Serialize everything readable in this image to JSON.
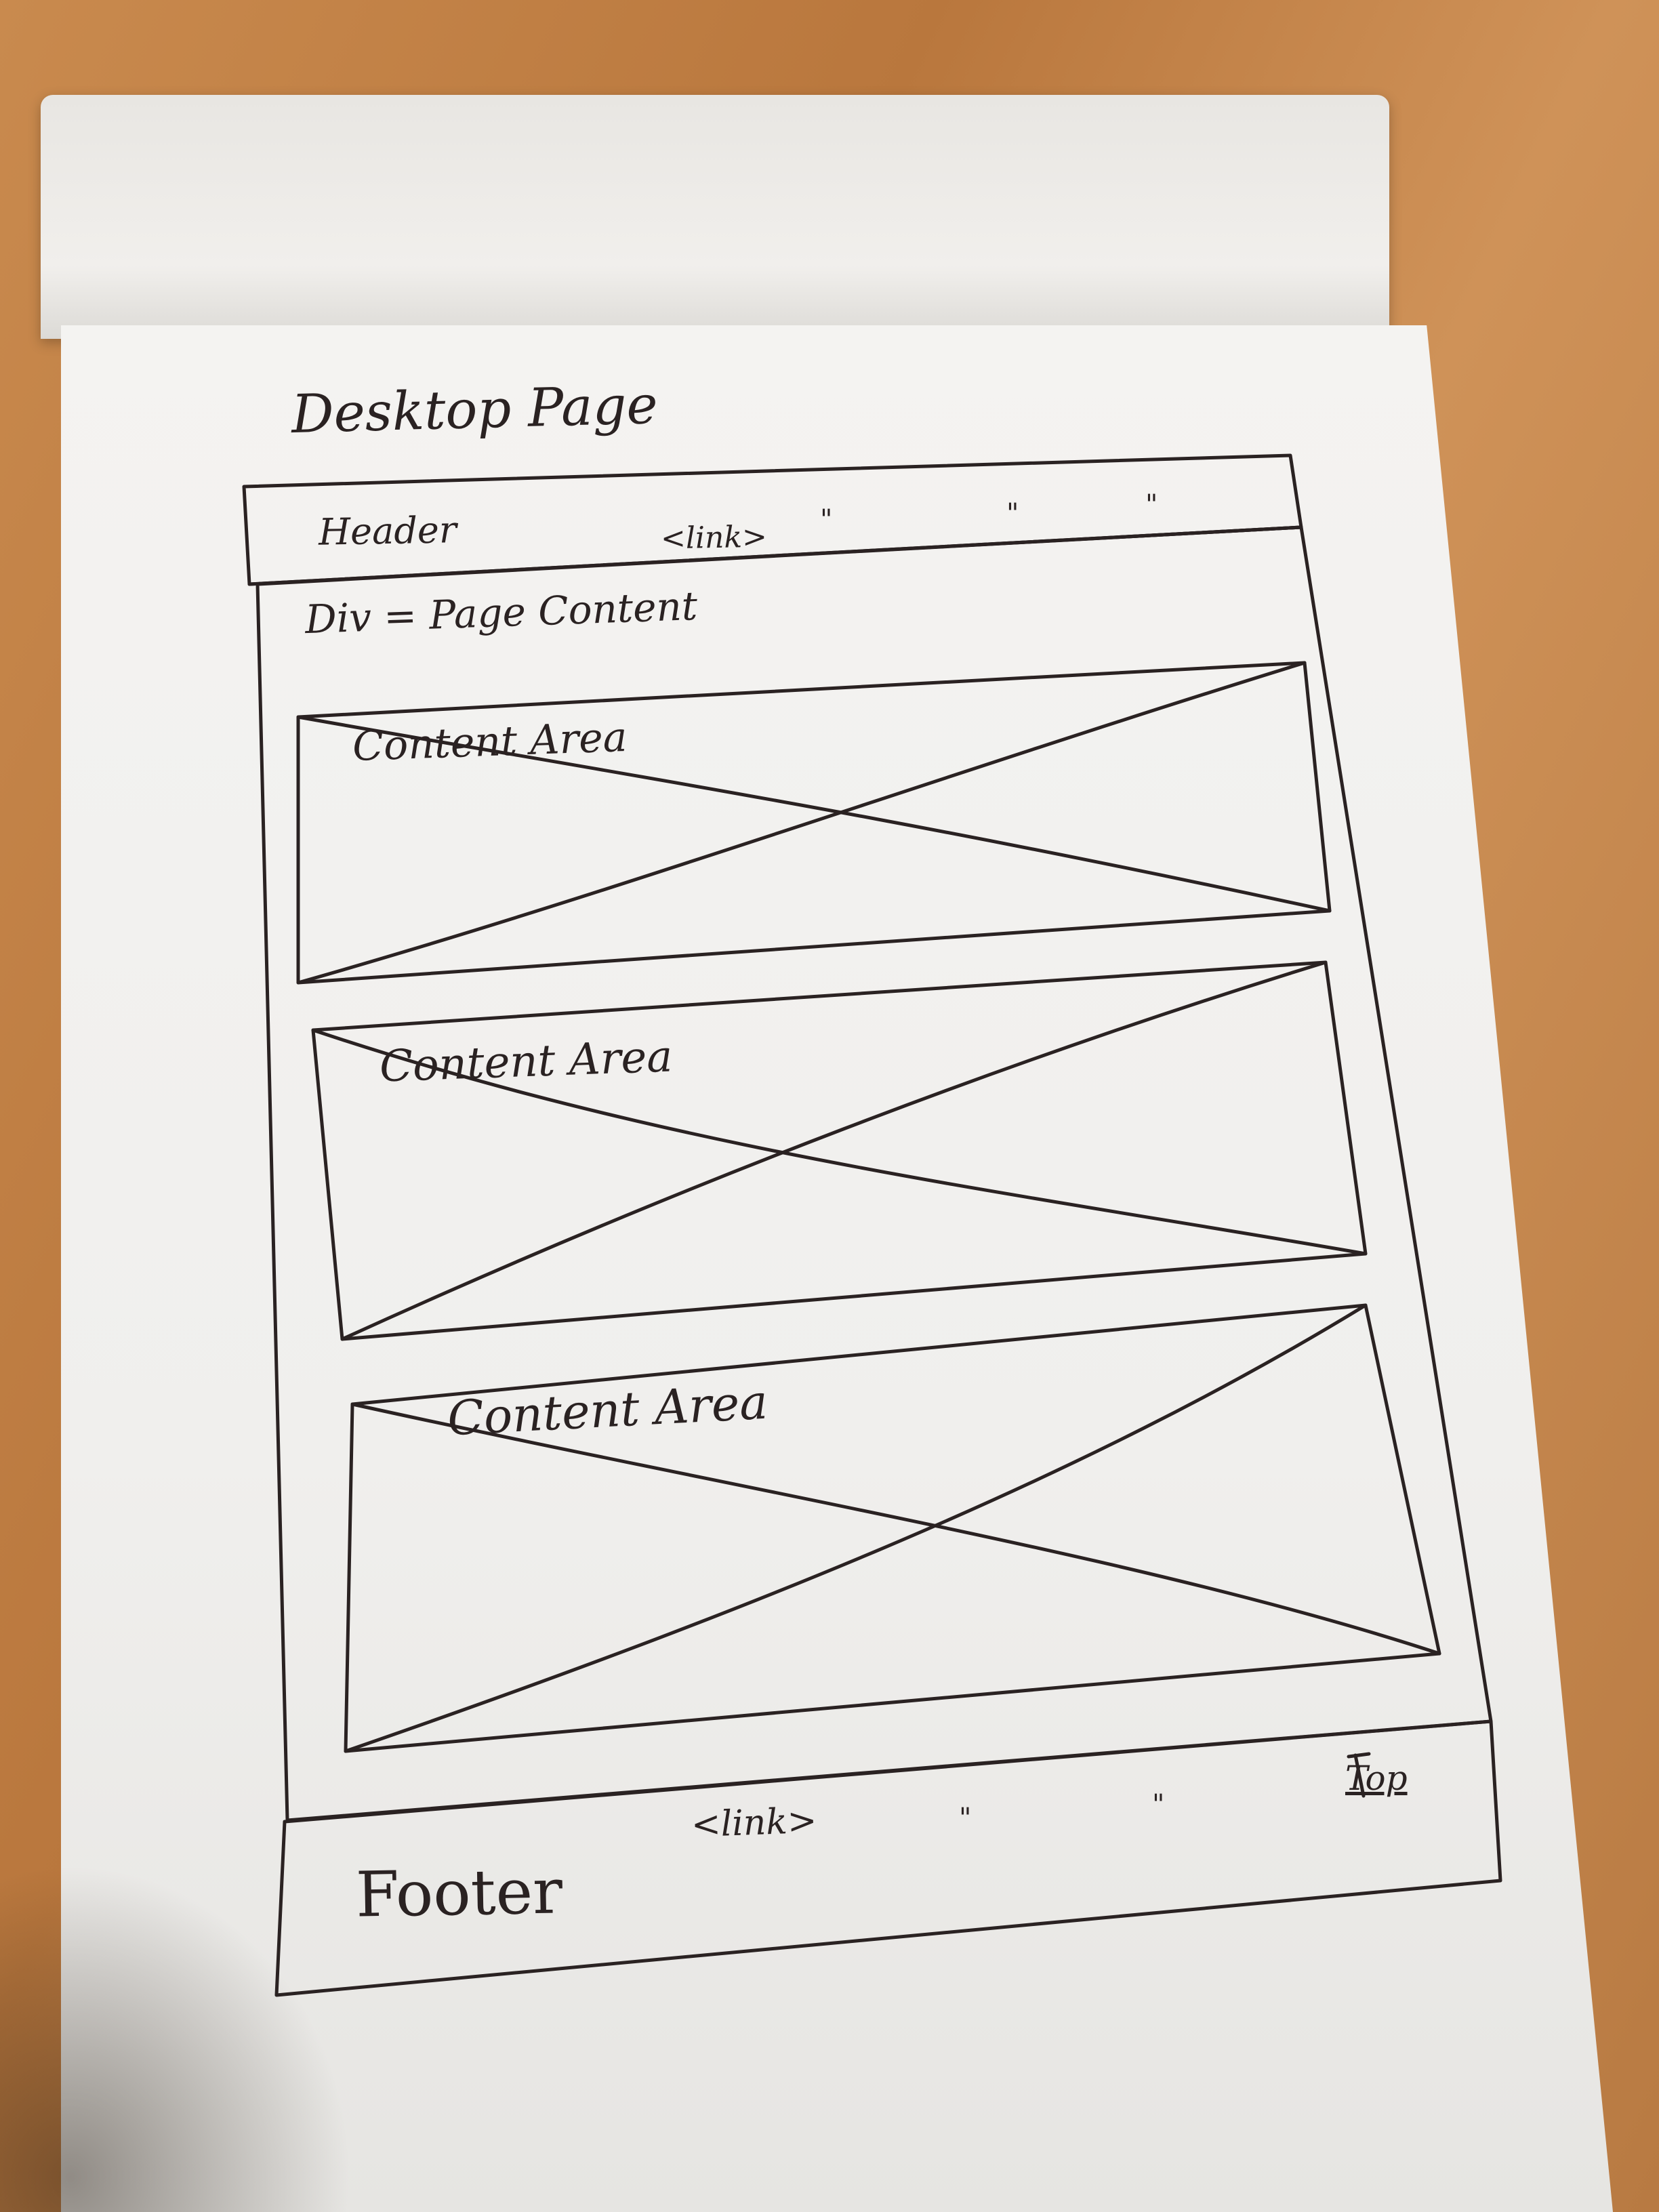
{
  "sketch": {
    "title": "Desktop Page",
    "header": {
      "label": "Header",
      "link": "<link>",
      "ditto_marks": [
        "\"",
        "\"",
        "\""
      ]
    },
    "page_content": {
      "label": "Div = Page Content"
    },
    "content_areas": [
      {
        "label": "Content Area"
      },
      {
        "label": "Content Area"
      },
      {
        "label": "Content Area"
      }
    ],
    "top_link": "Top",
    "footer": {
      "label": "Footer",
      "link": "<link>",
      "ditto_marks": [
        "\"",
        "\""
      ]
    }
  },
  "colors": {
    "ink": "#2a2222",
    "paper": "#f2f1ef",
    "desk": "#c38548"
  }
}
